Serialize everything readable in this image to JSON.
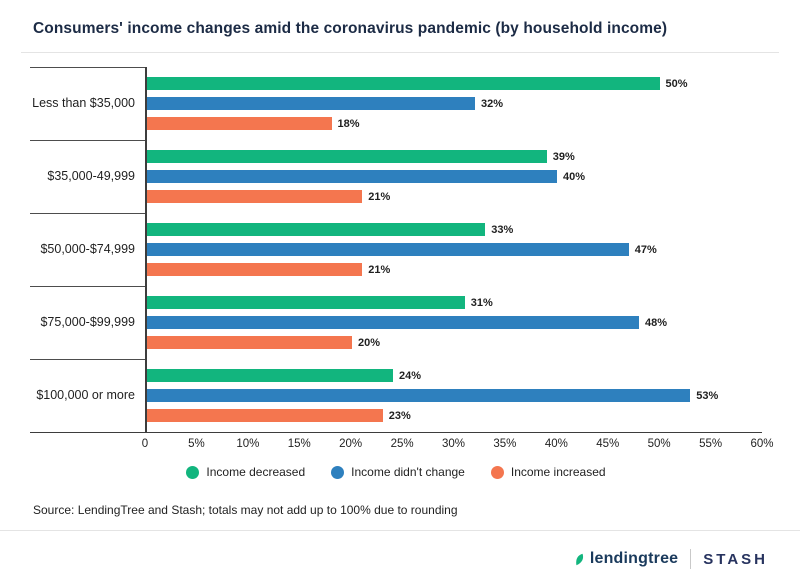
{
  "title": "Consumers' income changes amid the coronavirus pandemic (by household income)",
  "source": "Source: LendingTree and Stash; totals may not add up to 100% due to rounding",
  "footer": {
    "lendingtree": "lendingtree",
    "stash": "STASH"
  },
  "colors": {
    "green": "#12b57e",
    "blue": "#2e80be",
    "orange": "#f4764f",
    "navy": "#1c2b45"
  },
  "chart_data": {
    "type": "bar",
    "orientation": "horizontal",
    "title": "Consumers' income changes amid the coronavirus pandemic (by household income)",
    "categories": [
      "Less than $35,000",
      "$35,000-49,999",
      "$50,000-$74,999",
      "$75,000-$99,999",
      "$100,000 or more"
    ],
    "series": [
      {
        "name": "Income decreased",
        "color": "#12b57e",
        "values": [
          50,
          39,
          33,
          31,
          24
        ]
      },
      {
        "name": "Income didn't change",
        "color": "#2e80be",
        "values": [
          32,
          40,
          47,
          48,
          53
        ]
      },
      {
        "name": "Income increased",
        "color": "#f4764f",
        "values": [
          18,
          21,
          21,
          20,
          23
        ]
      }
    ],
    "value_suffix": "%",
    "xlim": [
      0,
      60
    ],
    "xticks": [
      "0",
      "5%",
      "10%",
      "15%",
      "20%",
      "25%",
      "30%",
      "35%",
      "40%",
      "45%",
      "50%",
      "55%",
      "60%"
    ],
    "grid": false,
    "legend_position": "bottom"
  }
}
